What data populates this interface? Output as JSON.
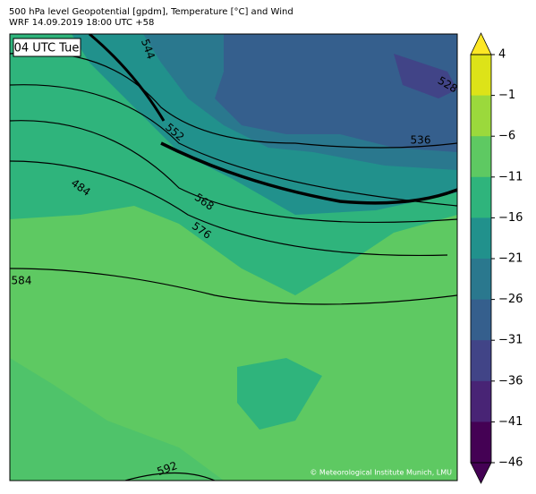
{
  "header": {
    "line1": "500 hPa level Geopotential [gpdm], Temperature [°C] and Wind",
    "line2": "WRF 14.09.2019 18:00 UTC +58"
  },
  "map": {
    "time_label": "04 UTC Tue",
    "contour_labels": [
      "544",
      "552",
      "528",
      "536",
      "484",
      "568",
      "576",
      "584",
      "592"
    ],
    "copyright": "© Meteorological Institute Munich, LMU"
  },
  "colorbar": {
    "ticks": [
      4,
      {
        "value": -1,
        "label": "−1"
      },
      {
        "value": -6,
        "label": "−6"
      },
      {
        "value": -11,
        "label": "−11"
      },
      {
        "value": -16,
        "label": "−16"
      },
      {
        "value": -21,
        "label": "−21"
      },
      {
        "value": -26,
        "label": "−26"
      },
      {
        "value": -31,
        "label": "−31"
      },
      {
        "value": -36,
        "label": "−36"
      },
      {
        "value": -41,
        "label": "−41"
      },
      {
        "value": -46,
        "label": "−46"
      }
    ],
    "colors": [
      "#dde318",
      "#9bd93c",
      "#5ec962",
      "#2fb47c",
      "#21918c",
      "#2a788e",
      "#355f8d",
      "#414487",
      "#482475",
      "#440154"
    ],
    "extend_colors": [
      "#fde725",
      "#440154"
    ]
  }
}
